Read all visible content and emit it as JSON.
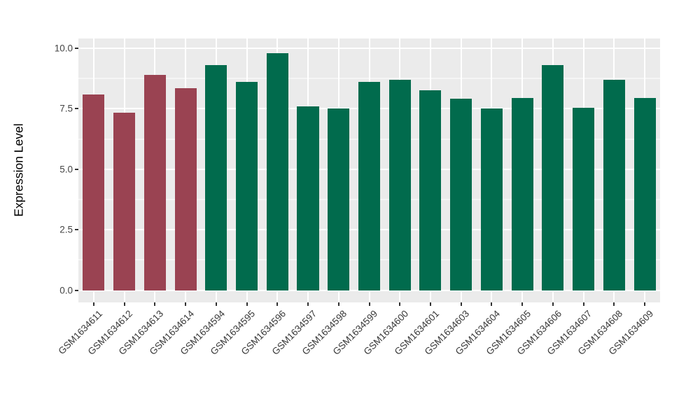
{
  "chart_data": {
    "type": "bar",
    "title": "",
    "xlabel": "",
    "ylabel": "Expression Level",
    "categories": [
      "GSM1634611",
      "GSM1634612",
      "GSM1634613",
      "GSM1634614",
      "GSM1634594",
      "GSM1634595",
      "GSM1634596",
      "GSM1634597",
      "GSM1634598",
      "GSM1634599",
      "GSM1634600",
      "GSM1634601",
      "GSM1634603",
      "GSM1634604",
      "GSM1634605",
      "GSM1634606",
      "GSM1634607",
      "GSM1634608",
      "GSM1634609"
    ],
    "values": [
      8.1,
      7.35,
      8.9,
      8.35,
      9.3,
      8.6,
      9.8,
      7.6,
      7.5,
      8.6,
      8.7,
      8.25,
      7.9,
      7.5,
      7.95,
      9.3,
      7.55,
      8.7,
      7.95
    ],
    "bar_colors": [
      "#9A4352",
      "#9A4352",
      "#9A4352",
      "#9A4352",
      "#016B4D",
      "#016B4D",
      "#016B4D",
      "#016B4D",
      "#016B4D",
      "#016B4D",
      "#016B4D",
      "#016B4D",
      "#016B4D",
      "#016B4D",
      "#016B4D",
      "#016B4D",
      "#016B4D",
      "#016B4D",
      "#016B4D"
    ],
    "group_colors": {
      "first_group": "#9A4352",
      "second_group": "#016B4D"
    },
    "ylim": [
      -0.5,
      10.4
    ],
    "yticks": [
      0,
      2.5,
      5,
      7.5,
      10
    ],
    "ytick_labels": [
      "0.0",
      "2.5",
      "5.0",
      "7.5",
      "10.0"
    ],
    "yticks_minor": [
      1.25,
      3.75,
      6.25,
      8.75
    ],
    "bar_width_frac": 0.71,
    "grid": true,
    "legend_position": "none",
    "panel_bg": "#EBEBEB",
    "grid_color": "#FFFFFF",
    "axis_text_color": "#454545",
    "x_labels_rotation_deg": 45
  }
}
